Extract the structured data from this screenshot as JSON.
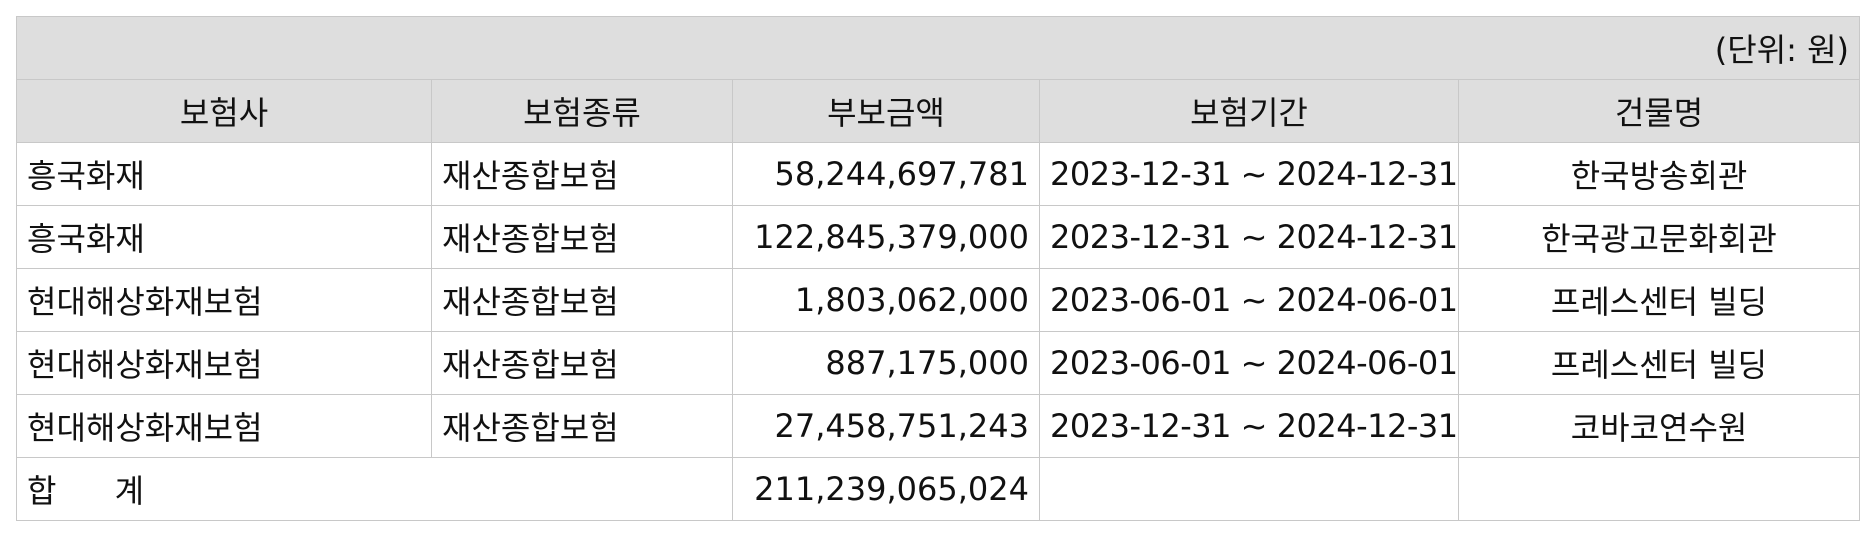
{
  "table": {
    "unit_note": "(단위: 원)",
    "headers": [
      "보험사",
      "보험종류",
      "부보금액",
      "보험기간",
      "건물명"
    ],
    "rows": [
      {
        "insurer": "흥국화재",
        "type": "재산종합보험",
        "amount": "58,244,697,781",
        "period": "2023-12-31 ~ 2024-12-31",
        "building": "한국방송회관"
      },
      {
        "insurer": "흥국화재",
        "type": "재산종합보험",
        "amount": "122,845,379,000",
        "period": "2023-12-31 ~ 2024-12-31",
        "building": "한국광고문화회관"
      },
      {
        "insurer": "현대해상화재보험",
        "type": "재산종합보험",
        "amount": "1,803,062,000",
        "period": "2023-06-01 ~ 2024-06-01",
        "building": "프레스센터 빌딩"
      },
      {
        "insurer": "현대해상화재보험",
        "type": "재산종합보험",
        "amount": "887,175,000",
        "period": "2023-06-01 ~ 2024-06-01",
        "building": "프레스센터 빌딩"
      },
      {
        "insurer": "현대해상화재보험",
        "type": "재산종합보험",
        "amount": "27,458,751,243",
        "period": "2023-12-31 ~ 2024-12-31",
        "building": "코바코연수원"
      }
    ],
    "total": {
      "label": "합 계",
      "amount": "211,239,065,024"
    }
  }
}
